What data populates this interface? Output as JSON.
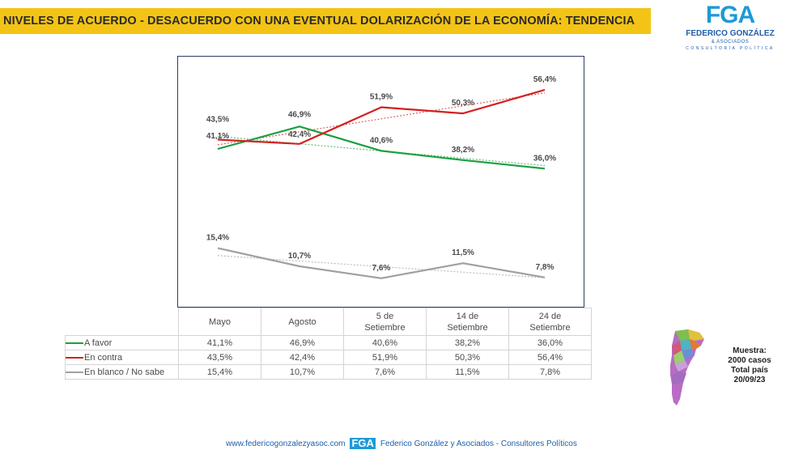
{
  "header": {
    "title": "NIVELES DE ACUERDO - DESACUERDO CON UNA EVENTUAL DOLARIZACIÓN DE LA ECONOMÍA: TENDENCIA"
  },
  "logo": {
    "mark": "FGA",
    "name": "FEDERICO GONZÁLEZ",
    "sub1": "& ASOCIADOS",
    "sub2": "CONSULTORÍA POLÍTICA"
  },
  "chart_data": {
    "type": "line",
    "title": "NIVELES DE ACUERDO - DESACUERDO CON UNA EVENTUAL DOLARIZACIÓN DE LA ECONOMÍA: TENDENCIA",
    "categories": [
      "Mayo",
      "Agosto",
      "5 de Setiembre",
      "14 de Setiembre",
      "24 de Setiembre"
    ],
    "ylim": [
      0,
      65
    ],
    "trendlines": true,
    "series": [
      {
        "name": "A favor",
        "color": "#1aa040",
        "values": [
          41.1,
          46.9,
          40.6,
          38.2,
          36.0
        ],
        "labels": [
          "41,1%",
          "46,9%",
          "40,6%",
          "38,2%",
          "36,0%"
        ]
      },
      {
        "name": "En contra",
        "color": "#d42020",
        "values": [
          43.5,
          42.4,
          51.9,
          50.3,
          56.4
        ],
        "labels": [
          "43,5%",
          "42,4%",
          "51,9%",
          "50,3%",
          "56,4%"
        ]
      },
      {
        "name": "En blanco / No sabe",
        "color": "#a0a0a0",
        "values": [
          15.4,
          10.7,
          7.6,
          11.5,
          7.8
        ],
        "labels": [
          "15,4%",
          "10,7%",
          "7,6%",
          "11,5%",
          "7,8%"
        ]
      }
    ]
  },
  "table": {
    "headers": [
      [
        "Mayo"
      ],
      [
        "Agosto"
      ],
      [
        "5 de",
        "Setiembre"
      ],
      [
        "14 de",
        "Setiembre"
      ],
      [
        "24 de",
        "Setiembre"
      ]
    ]
  },
  "muestra": {
    "line1": "Muestra:",
    "line2": "2000 casos",
    "line3": "Total país",
    "line4": "20/09/23"
  },
  "footer": {
    "url": "www.federicogonzalezyasoc.com",
    "logo": "FGA",
    "company": "Federico González y Asociados - Consultores Políticos"
  }
}
